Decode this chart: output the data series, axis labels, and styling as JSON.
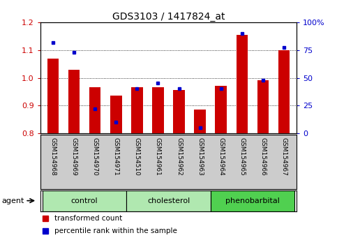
{
  "title": "GDS3103 / 1417824_at",
  "samples": [
    "GSM154968",
    "GSM154969",
    "GSM154970",
    "GSM154971",
    "GSM154510",
    "GSM154961",
    "GSM154962",
    "GSM154963",
    "GSM154964",
    "GSM154965",
    "GSM154966",
    "GSM154967"
  ],
  "group_defs": [
    {
      "label": "control",
      "start": 0,
      "end": 3,
      "color": "#b0e8b0"
    },
    {
      "label": "cholesterol",
      "start": 4,
      "end": 7,
      "color": "#b0e8b0"
    },
    {
      "label": "phenobarbital",
      "start": 8,
      "end": 11,
      "color": "#50d050"
    }
  ],
  "red_values": [
    1.07,
    1.03,
    0.965,
    0.935,
    0.965,
    0.965,
    0.955,
    0.885,
    0.97,
    1.155,
    0.99,
    1.1
  ],
  "blue_percentiles": [
    82,
    73,
    22,
    10,
    40,
    45,
    40,
    5,
    40,
    90,
    48,
    77
  ],
  "ylim": [
    0.8,
    1.2
  ],
  "y2lim": [
    0,
    100
  ],
  "yticks": [
    0.8,
    0.9,
    1.0,
    1.1,
    1.2
  ],
  "y2ticks": [
    0,
    25,
    50,
    75,
    100
  ],
  "bar_color": "#cc0000",
  "dot_color": "#0000cc",
  "bar_width": 0.55,
  "grid_color": "#000000",
  "bg_color": "#ffffff",
  "label_area_color": "#cccccc",
  "yticklabel_color": "#cc0000",
  "y2ticklabel_color": "#0000cc",
  "legend_items": [
    "transformed count",
    "percentile rank within the sample"
  ]
}
